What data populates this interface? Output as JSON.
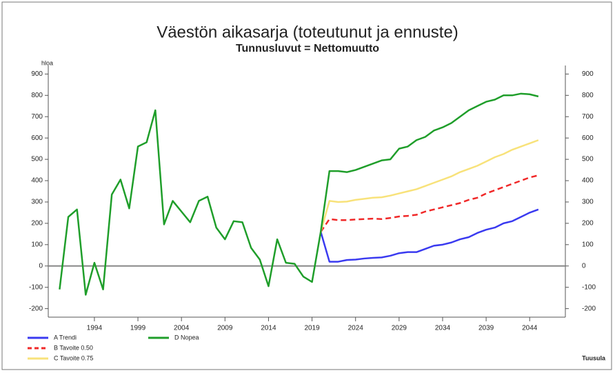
{
  "chart_data": {
    "type": "line",
    "title": "Väestön aikasarja (toteutunut ja ennuste)",
    "subtitle": "Tunnusluvut = Nettomuutto",
    "ylabel": "hloa",
    "source": "Tuusula",
    "x": [
      1990,
      1991,
      1992,
      1993,
      1994,
      1995,
      1996,
      1997,
      1998,
      1999,
      2000,
      2001,
      2002,
      2003,
      2004,
      2005,
      2006,
      2007,
      2008,
      2009,
      2010,
      2011,
      2012,
      2013,
      2014,
      2015,
      2016,
      2017,
      2018,
      2019,
      2020,
      2021,
      2022,
      2023,
      2024,
      2025,
      2026,
      2027,
      2028,
      2029,
      2030,
      2031,
      2032,
      2033,
      2034,
      2035,
      2036,
      2037,
      2038,
      2039,
      2040,
      2041,
      2042,
      2043,
      2044,
      2045
    ],
    "xlim": [
      1988.7,
      2048.1
    ],
    "xticks": [
      1994,
      1999,
      2004,
      2009,
      2014,
      2019,
      2024,
      2029,
      2034,
      2039,
      2044
    ],
    "ylim": [
      -240,
      940
    ],
    "yticks": [
      -200,
      -100,
      0,
      100,
      200,
      300,
      400,
      500,
      600,
      700,
      800,
      900
    ],
    "y2lim": [
      -240,
      940
    ],
    "y2ticks": [
      -200,
      -100,
      0,
      100,
      200,
      300,
      400,
      500,
      600,
      700,
      800,
      900
    ],
    "legend": "bottom-left",
    "series": [
      {
        "name": "A Trendi",
        "color": "#3a3af0",
        "dash": false,
        "values": [
          null,
          null,
          null,
          null,
          null,
          null,
          null,
          null,
          null,
          null,
          null,
          null,
          null,
          null,
          null,
          null,
          null,
          null,
          null,
          null,
          null,
          null,
          null,
          null,
          null,
          null,
          null,
          null,
          null,
          null,
          160,
          20,
          20,
          28,
          30,
          35,
          38,
          40,
          48,
          60,
          65,
          65,
          80,
          95,
          100,
          110,
          125,
          135,
          155,
          170,
          180,
          200,
          210,
          230,
          250,
          265
        ]
      },
      {
        "name": "B Tavoite 0.50",
        "color": "#f02828",
        "dash": true,
        "values": [
          null,
          null,
          null,
          null,
          null,
          null,
          null,
          null,
          null,
          null,
          null,
          null,
          null,
          null,
          null,
          null,
          null,
          null,
          null,
          null,
          null,
          null,
          null,
          null,
          null,
          null,
          null,
          null,
          null,
          null,
          160,
          220,
          215,
          215,
          218,
          220,
          222,
          220,
          225,
          232,
          235,
          240,
          255,
          265,
          275,
          285,
          295,
          310,
          320,
          340,
          355,
          370,
          385,
          400,
          415,
          425
        ]
      },
      {
        "name": "C Tavoite 0.75",
        "color": "#f8e27a",
        "dash": false,
        "values": [
          null,
          null,
          null,
          null,
          null,
          null,
          null,
          null,
          null,
          null,
          null,
          null,
          null,
          null,
          null,
          null,
          null,
          null,
          null,
          null,
          null,
          null,
          null,
          null,
          null,
          null,
          null,
          null,
          null,
          null,
          160,
          305,
          300,
          302,
          310,
          315,
          320,
          322,
          330,
          340,
          350,
          360,
          375,
          390,
          405,
          420,
          440,
          455,
          470,
          490,
          510,
          525,
          545,
          560,
          575,
          590
        ]
      },
      {
        "name": "D Nopea",
        "color": "#1f9e2a",
        "dash": false,
        "values": [
          -110,
          230,
          265,
          -135,
          15,
          -110,
          335,
          405,
          270,
          560,
          580,
          730,
          195,
          305,
          255,
          205,
          305,
          325,
          180,
          125,
          210,
          205,
          85,
          30,
          -95,
          125,
          15,
          10,
          -50,
          -75,
          160,
          445,
          445,
          440,
          450,
          465,
          480,
          495,
          500,
          550,
          560,
          590,
          605,
          635,
          650,
          670,
          700,
          730,
          750,
          770,
          780,
          800,
          800,
          808,
          805,
          795
        ]
      }
    ]
  }
}
